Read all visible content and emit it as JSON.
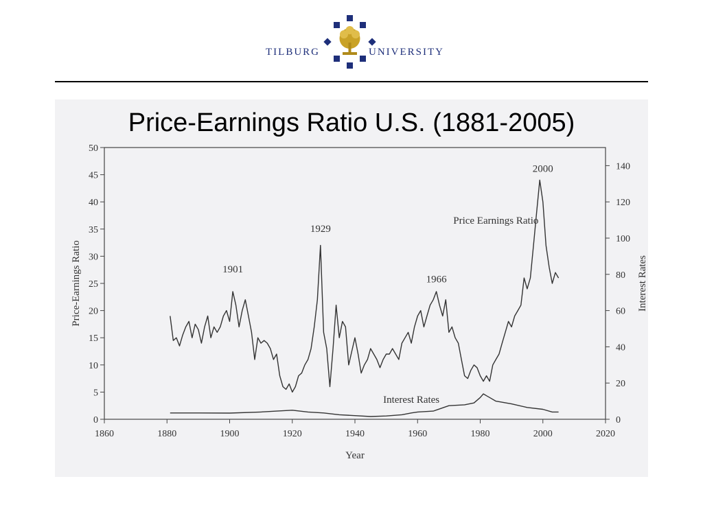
{
  "header": {
    "logo_left": "TILBURG",
    "logo_right": "UNIVERSITY",
    "colors": {
      "brand": "#1e2f7a",
      "gold": "#c9a227"
    }
  },
  "slide": {
    "title": "Price-Earnings Ratio U.S. (1881-2005)"
  },
  "chart_data": {
    "type": "line",
    "title": "",
    "xlabel": "Year",
    "ylabel_left": "Price-Earnings Ratio",
    "ylabel_right": "Interest Rates",
    "xlim": [
      1860,
      2020
    ],
    "ylim_left": [
      0,
      50
    ],
    "ylim_right": [
      0,
      150
    ],
    "x_ticks": [
      1860,
      1880,
      1900,
      1920,
      1940,
      1960,
      1980,
      2000,
      2020
    ],
    "y_left_ticks": [
      0,
      5,
      10,
      15,
      20,
      25,
      30,
      35,
      40,
      45,
      50
    ],
    "y_right_ticks": [
      0,
      20,
      40,
      60,
      80,
      100,
      120,
      140
    ],
    "grid": false,
    "annotations": [
      {
        "text": "1901",
        "x": 1901,
        "y": 27
      },
      {
        "text": "1929",
        "x": 1929,
        "y": 34.5
      },
      {
        "text": "1966",
        "x": 1966,
        "y": 25.2
      },
      {
        "text": "2000",
        "x": 2000,
        "y": 45.5
      },
      {
        "text": "Price Earnings Ratio",
        "x": 1985,
        "y": 36
      },
      {
        "text": "Interest Rates",
        "x": 1958,
        "y": 3
      }
    ],
    "series": [
      {
        "name": "Price Earnings Ratio",
        "axis": "left",
        "color": "#333333",
        "x": [
          1881,
          1882,
          1883,
          1884,
          1885,
          1886,
          1887,
          1888,
          1889,
          1890,
          1891,
          1892,
          1893,
          1894,
          1895,
          1896,
          1897,
          1898,
          1899,
          1900,
          1901,
          1902,
          1903,
          1904,
          1905,
          1906,
          1907,
          1908,
          1909,
          1910,
          1911,
          1912,
          1913,
          1914,
          1915,
          1916,
          1917,
          1918,
          1919,
          1920,
          1921,
          1922,
          1923,
          1924,
          1925,
          1926,
          1927,
          1928,
          1929,
          1930,
          1931,
          1932,
          1933,
          1934,
          1935,
          1936,
          1937,
          1938,
          1939,
          1940,
          1941,
          1942,
          1943,
          1944,
          1945,
          1946,
          1947,
          1948,
          1949,
          1950,
          1951,
          1952,
          1953,
          1954,
          1955,
          1956,
          1957,
          1958,
          1959,
          1960,
          1961,
          1962,
          1963,
          1964,
          1965,
          1966,
          1967,
          1968,
          1969,
          1970,
          1971,
          1972,
          1973,
          1974,
          1975,
          1976,
          1977,
          1978,
          1979,
          1980,
          1981,
          1982,
          1983,
          1984,
          1985,
          1986,
          1987,
          1988,
          1989,
          1990,
          1991,
          1992,
          1993,
          1994,
          1995,
          1996,
          1997,
          1998,
          1999,
          2000,
          2001,
          2002,
          2003,
          2004,
          2005
        ],
        "values": [
          19,
          14.5,
          15,
          13.5,
          15.5,
          17,
          18,
          15,
          17.5,
          16.5,
          14,
          17,
          19,
          15,
          17,
          16,
          17,
          19,
          20,
          18,
          23.5,
          21,
          17,
          20,
          22,
          19,
          16,
          11,
          15,
          14,
          14.5,
          14,
          13,
          11,
          12,
          8,
          6,
          5.5,
          6.5,
          5,
          6,
          8,
          8.5,
          10,
          11,
          13,
          17,
          22,
          32,
          16,
          13,
          6,
          13,
          21,
          15,
          18,
          17,
          10,
          12.5,
          15,
          12,
          8.5,
          10,
          11,
          13,
          12,
          11,
          9.5,
          11,
          12,
          12,
          13,
          12,
          11,
          14,
          15,
          16,
          14,
          17,
          19,
          20,
          17,
          19,
          21,
          22,
          23.5,
          21,
          19,
          22,
          16,
          17,
          15,
          14,
          11,
          8,
          7.5,
          9,
          10,
          9.5,
          8,
          7,
          8,
          7,
          10,
          11,
          12,
          14,
          16,
          18,
          17,
          19,
          20,
          21,
          26,
          24,
          26,
          32,
          38,
          44,
          40,
          32,
          28,
          25,
          27,
          26
        ]
      },
      {
        "name": "Interest Rates",
        "axis": "right",
        "color": "#333333",
        "x": [
          1881,
          1890,
          1900,
          1910,
          1915,
          1920,
          1925,
          1930,
          1935,
          1940,
          1945,
          1950,
          1955,
          1958,
          1960,
          1965,
          1970,
          1975,
          1978,
          1980,
          1981,
          1982,
          1983,
          1985,
          1990,
          1995,
          2000,
          2003,
          2005
        ],
        "values": [
          3.5,
          3.5,
          3.4,
          4,
          4.5,
          5,
          4,
          3.5,
          2.5,
          2,
          1.5,
          1.8,
          2.5,
          3.5,
          4,
          4.5,
          7.5,
          8,
          9,
          12,
          14,
          13,
          12,
          10,
          8.5,
          6.5,
          5.5,
          4,
          4
        ]
      }
    ]
  }
}
